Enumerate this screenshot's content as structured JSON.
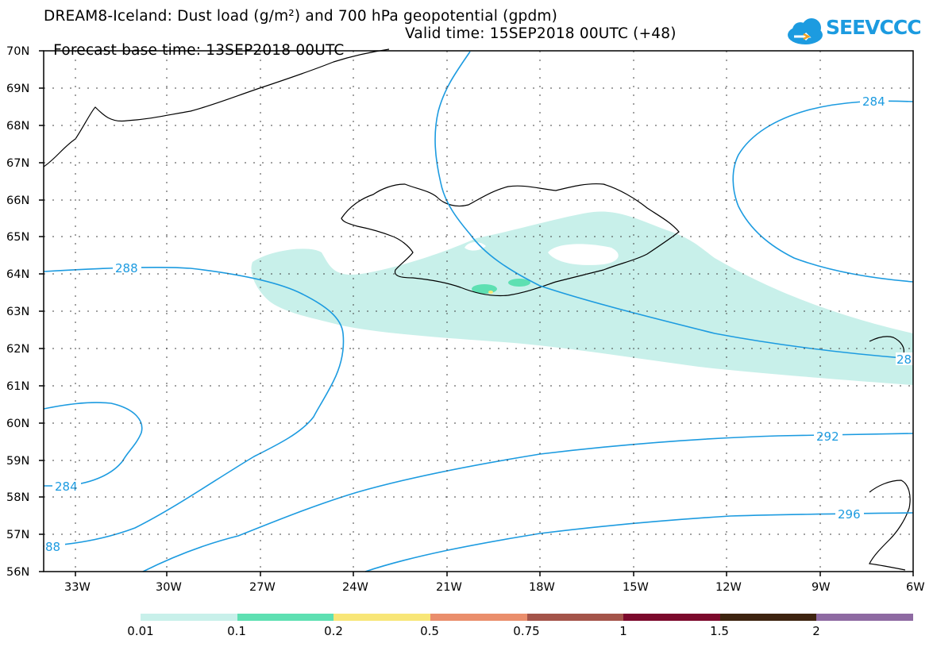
{
  "header": {
    "title": "DREAM8-Iceland: Dust load (g/m²) and 700 hPa geopotential (gpdm)",
    "base_time": "Forecast base time: 13SEP2018 00UTC",
    "valid_time": "Valid time: 15SEP2018 00UTC (+48)"
  },
  "logo": {
    "text": "SEEVCCC",
    "color": "#1c9be0"
  },
  "map": {
    "lat_labels": [
      "70N",
      "69N",
      "68N",
      "67N",
      "66N",
      "65N",
      "64N",
      "63N",
      "62N",
      "61N",
      "60N",
      "59N",
      "58N",
      "57N",
      "56N"
    ],
    "lon_labels": [
      "33W",
      "30W",
      "27W",
      "24W",
      "21W",
      "18W",
      "15W",
      "12W",
      "9W",
      "6W"
    ],
    "contour_labels": [
      "288",
      "284",
      "284",
      "292",
      "296",
      "88",
      "28"
    ],
    "contour_color": "#1c9be0",
    "dust_color": "#c8f0ea"
  },
  "legend": {
    "colors": [
      "#c8f0ea",
      "#5ee0b2",
      "#f8e677",
      "#ea8e6c",
      "#a4544a",
      "#7c0a2c",
      "#3e2410",
      "#8e6aa2"
    ],
    "labels": [
      "0.01",
      "0.1",
      "0.2",
      "0.5",
      "0.75",
      "1",
      "1.5",
      "2"
    ]
  }
}
